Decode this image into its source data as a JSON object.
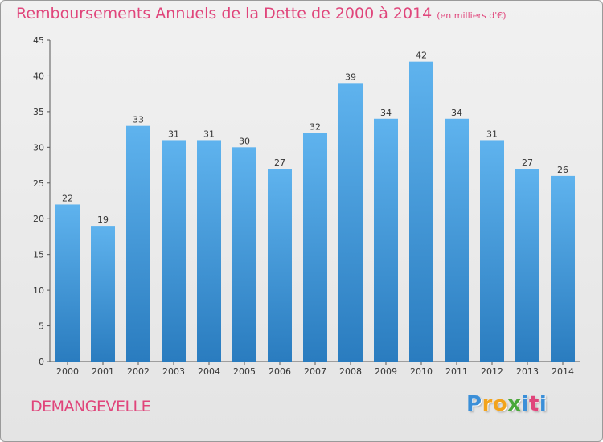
{
  "title": "Remboursements Annuels de la Dette de 2000 à 2014",
  "subtitle": "(en milliers d'€)",
  "commune": "DEMANGEVELLE",
  "logo": {
    "p": "P",
    "r": "r",
    "o": "o",
    "x": "x",
    "i1": "i",
    "t": "t",
    "i2": "i"
  },
  "colors": {
    "bar": "#5aaee9",
    "bar_dark": "#2f82c6",
    "title": "#e0457b"
  },
  "chart_data": {
    "type": "bar",
    "title": "Remboursements Annuels de la Dette de 2000 à 2014",
    "ylabel": "en milliers d'€",
    "xlabel": "",
    "categories": [
      "2000",
      "2001",
      "2002",
      "2003",
      "2004",
      "2005",
      "2006",
      "2007",
      "2008",
      "2009",
      "2010",
      "2011",
      "2012",
      "2013",
      "2014"
    ],
    "values": [
      22,
      19,
      33,
      31,
      31,
      30,
      27,
      32,
      39,
      34,
      42,
      34,
      31,
      27,
      26
    ],
    "ylim": [
      0,
      45
    ],
    "yticks": [
      0,
      5,
      10,
      15,
      20,
      25,
      30,
      35,
      40,
      45
    ],
    "grid": false
  }
}
